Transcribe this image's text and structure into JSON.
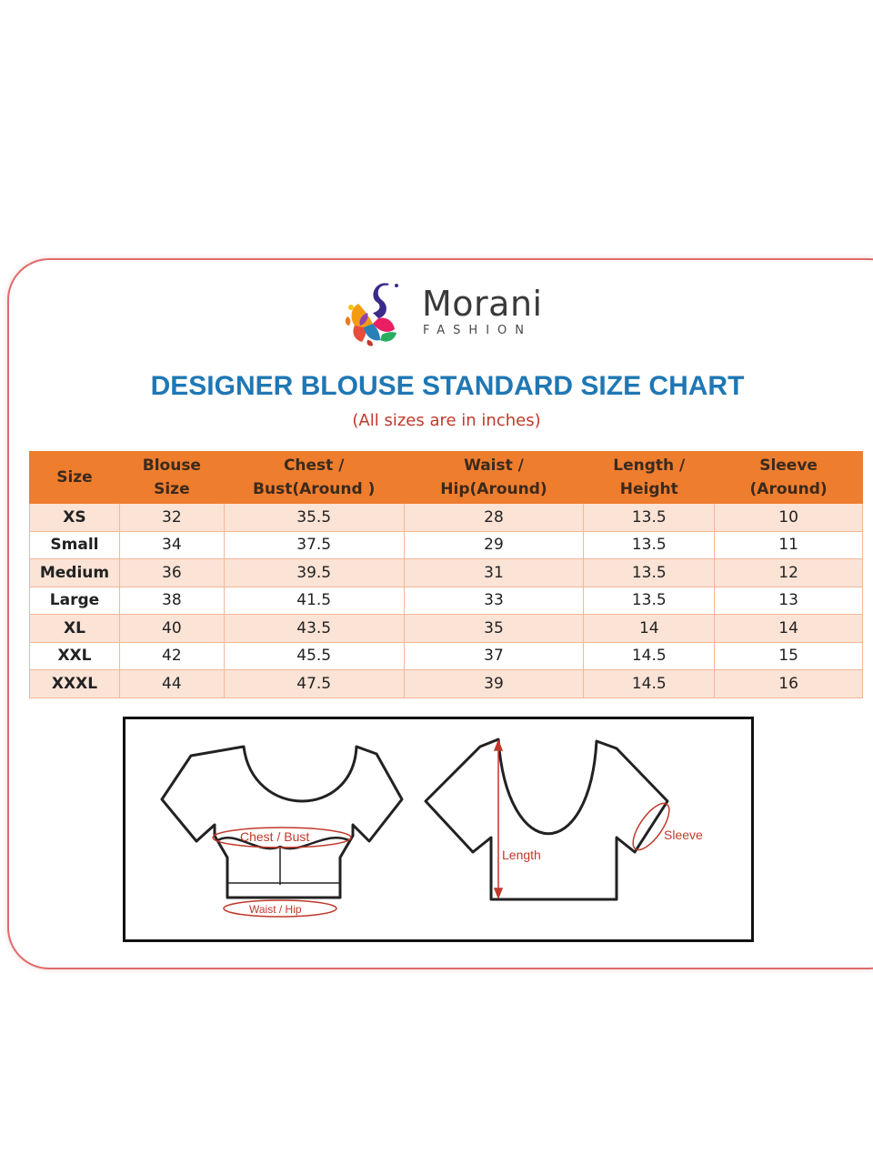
{
  "brand": {
    "name": "Morani",
    "tagline": "FASHION"
  },
  "title": "DESIGNER BLOUSE STANDARD SIZE CHART",
  "subtitle": "(All sizes are in inches)",
  "table": {
    "headers": [
      [
        "Size",
        ""
      ],
      [
        "Blouse",
        "Size"
      ],
      [
        "Chest /",
        "Bust(Around )"
      ],
      [
        "Waist /",
        "Hip(Around)"
      ],
      [
        "Length /",
        "Height"
      ],
      [
        "Sleeve",
        "(Around)"
      ]
    ],
    "rows": [
      [
        "XS",
        "32",
        "35.5",
        "28",
        "13.5",
        "10"
      ],
      [
        "Small",
        "34",
        "37.5",
        "29",
        "13.5",
        "11"
      ],
      [
        "Medium",
        "36",
        "39.5",
        "31",
        "13.5",
        "12"
      ],
      [
        "Large",
        "38",
        "41.5",
        "33",
        "13.5",
        "13"
      ],
      [
        "XL",
        "40",
        "43.5",
        "35",
        "14",
        "14"
      ],
      [
        "XXL",
        "42",
        "45.5",
        "37",
        "14.5",
        "15"
      ],
      [
        "XXXL",
        "44",
        "47.5",
        "39",
        "14.5",
        "16"
      ]
    ]
  },
  "diagram": {
    "chest_label": "Chest / Bust",
    "waist_label": "Waist / Hip",
    "length_label": "Length",
    "sleeve_label": "Sleeve"
  },
  "colors": {
    "header_orange": "#ef7d2e",
    "row_peach": "#fbe3d6",
    "title_blue": "#1f77b4",
    "accent_red": "#c0392b",
    "card_border": "#e06a6a"
  }
}
